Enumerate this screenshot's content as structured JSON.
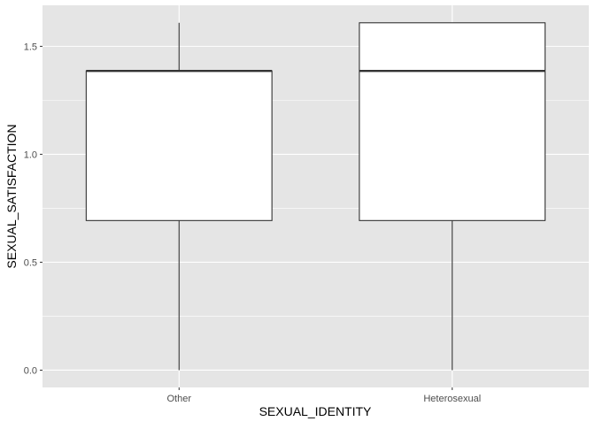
{
  "chart_data": {
    "type": "boxplot",
    "xlabel": "SEXUAL_IDENTITY",
    "ylabel": "SEXUAL_SATISFACTION",
    "categories": [
      "Other",
      "Heterosexual"
    ],
    "boxes": [
      {
        "category": "Other",
        "min": 0.0,
        "q1": 0.693,
        "median": 1.386,
        "q3": 1.386,
        "max": 1.609
      },
      {
        "category": "Heterosexual",
        "min": 0.0,
        "q1": 0.693,
        "median": 1.386,
        "q3": 1.609,
        "max": 1.609
      }
    ],
    "ylim": [
      -0.08,
      1.69
    ],
    "yticks": [
      0.0,
      0.5,
      1.0,
      1.5
    ],
    "ytick_labels": [
      "0.0",
      "0.5",
      "1.0",
      "1.5"
    ],
    "grid": true,
    "colors": {
      "panel": "#E5E5E5",
      "grid": "#FFFFFF",
      "box_fill": "#FFFFFF",
      "box_line": "#333333",
      "tick_text": "#4D4D4D",
      "axis_title": "#000000"
    }
  }
}
